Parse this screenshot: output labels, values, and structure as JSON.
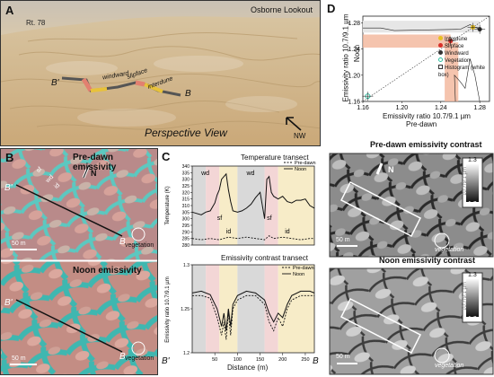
{
  "panelA": {
    "letter": "A",
    "road": "Rt. 78",
    "lookout": "Osborne Lookout",
    "b_prime": "B'",
    "b": "B",
    "windward": "windward",
    "slipface": "slipface",
    "interdune": "interdune",
    "view": "Perspective View",
    "compass": "NW"
  },
  "panelB": {
    "letter": "B",
    "top_title": "Pre-dawn emissivity",
    "bottom_title": "Noon emissivity",
    "north": "N",
    "scale": "50 m",
    "b_prime": "B'",
    "b": "B",
    "vegetation": "vegetation",
    "sf": "sf",
    "wd": "wd",
    "id": "id"
  },
  "panelC": {
    "letter": "C",
    "top_title": "Temperature transect",
    "bottom_title": "Emissivity contrast transect",
    "top_ylabel": "Temperature (K)",
    "bottom_ylabel": "Emissivity ratio 10.7/9.1 µm",
    "xlabel": "Distance (m)",
    "b_prime": "B'",
    "b": "B",
    "region_labels": [
      "wd",
      "sf",
      "id",
      "wd",
      "sf",
      "id"
    ],
    "legend": [
      "Pre-dawn",
      "Noon"
    ],
    "top_yticks": [
      "340",
      "335",
      "330",
      "325",
      "320",
      "315",
      "310",
      "305",
      "300",
      "295",
      "290",
      "285",
      "280"
    ],
    "bottom_yticks": [
      "1.3",
      "1.25",
      "1.2"
    ],
    "xticks": [
      "50",
      "100",
      "150",
      "200",
      "250"
    ]
  },
  "panelD": {
    "letter": "D",
    "ylabel": "Emissivity ratio 10.7/9.1 µm",
    "ylabel2": "Noon",
    "xlabel": "Emissivity ratio 10.7/9.1 µm",
    "xlabel2": "Pre-dawn",
    "xticks": [
      "1.16",
      "1.20",
      "1.24",
      "1.28"
    ],
    "yticks": [
      "1.28",
      "1.24",
      "1.20",
      "1.16"
    ],
    "legend": [
      "Interdune",
      "Slipface",
      "Windward",
      "Vegetation",
      "Histogram (white box)"
    ],
    "legend_colors": [
      "#e8c020",
      "#d8302a",
      "#333333",
      "#2cbfa0",
      "#ffffff"
    ],
    "pre_title": "Pre-dawn emissivity contrast",
    "noon_title": "Noon emissivity contrast",
    "bar_top": "1.3",
    "bar_label": "10.7/9.1 µm",
    "bar_bottom": "1.2",
    "north": "N",
    "scale": "50 m",
    "vegetation": "vegetation"
  },
  "chart_data": [
    {
      "type": "line",
      "title": "Temperature transect",
      "xlabel": "Distance (m)",
      "ylabel": "Temperature (K)",
      "xlim": [
        0,
        270
      ],
      "ylim": [
        280,
        340
      ],
      "series": [
        {
          "name": "Noon",
          "x": [
            0,
            10,
            20,
            30,
            40,
            50,
            55,
            60,
            65,
            70,
            75,
            80,
            85,
            90,
            100,
            110,
            120,
            130,
            140,
            150,
            160,
            165,
            170,
            175,
            180,
            190,
            200,
            210,
            220,
            230,
            240,
            250,
            260,
            270
          ],
          "y": [
            305,
            304,
            303,
            305,
            306,
            312,
            318,
            322,
            330,
            332,
            334,
            322,
            313,
            306,
            305,
            306,
            308,
            311,
            316,
            320,
            300,
            330,
            332,
            320,
            317,
            315,
            317,
            313,
            312,
            314,
            314,
            315,
            310,
            308
          ]
        },
        {
          "name": "Pre-dawn",
          "x": [
            0,
            20,
            40,
            60,
            80,
            100,
            120,
            140,
            160,
            170,
            180,
            200,
            220,
            240,
            260,
            270
          ],
          "y": [
            285,
            284,
            285,
            284,
            286,
            285,
            286,
            285,
            284,
            287,
            285,
            286,
            285,
            284,
            285,
            285
          ]
        }
      ]
    },
    {
      "type": "line",
      "title": "Emissivity contrast transect",
      "xlabel": "Distance (m)",
      "ylabel": "Emissivity ratio 10.7/9.1 µm",
      "xlim": [
        0,
        270
      ],
      "ylim": [
        1.2,
        1.3
      ],
      "series": [
        {
          "name": "Pre-dawn",
          "x": [
            0,
            20,
            40,
            55,
            65,
            70,
            75,
            80,
            85,
            90,
            100,
            120,
            140,
            160,
            170,
            180,
            190,
            200,
            210,
            220,
            240,
            260,
            270
          ],
          "y": [
            1.265,
            1.265,
            1.262,
            1.24,
            1.22,
            1.235,
            1.215,
            1.245,
            1.22,
            1.25,
            1.26,
            1.265,
            1.265,
            1.255,
            1.235,
            1.225,
            1.24,
            1.23,
            1.25,
            1.26,
            1.265,
            1.265,
            1.265
          ]
        },
        {
          "name": "Noon",
          "x": [
            0,
            20,
            40,
            55,
            65,
            70,
            75,
            80,
            85,
            90,
            100,
            120,
            140,
            160,
            170,
            180,
            190,
            200,
            210,
            220,
            240,
            260,
            270
          ],
          "y": [
            1.268,
            1.27,
            1.266,
            1.25,
            1.23,
            1.245,
            1.225,
            1.25,
            1.23,
            1.255,
            1.265,
            1.27,
            1.268,
            1.26,
            1.245,
            1.235,
            1.245,
            1.24,
            1.255,
            1.265,
            1.27,
            1.27,
            1.268
          ]
        }
      ]
    },
    {
      "type": "scatter",
      "xlabel": "Emissivity ratio 10.7/9.1 µm Pre-dawn",
      "ylabel": "Emissivity ratio 10.7/9.1 µm Noon",
      "xlim": [
        1.16,
        1.29
      ],
      "ylim": [
        1.16,
        1.29
      ],
      "series": [
        {
          "name": "Interdune",
          "x": [
            1.273
          ],
          "y": [
            1.273
          ]
        },
        {
          "name": "Slipface",
          "x": [
            1.25
          ],
          "y": [
            1.252
          ]
        },
        {
          "name": "Windward",
          "x": [
            1.28
          ],
          "y": [
            1.27
          ]
        },
        {
          "name": "Vegetation",
          "x": [
            1.165
          ],
          "y": [
            1.168
          ]
        }
      ]
    }
  ]
}
